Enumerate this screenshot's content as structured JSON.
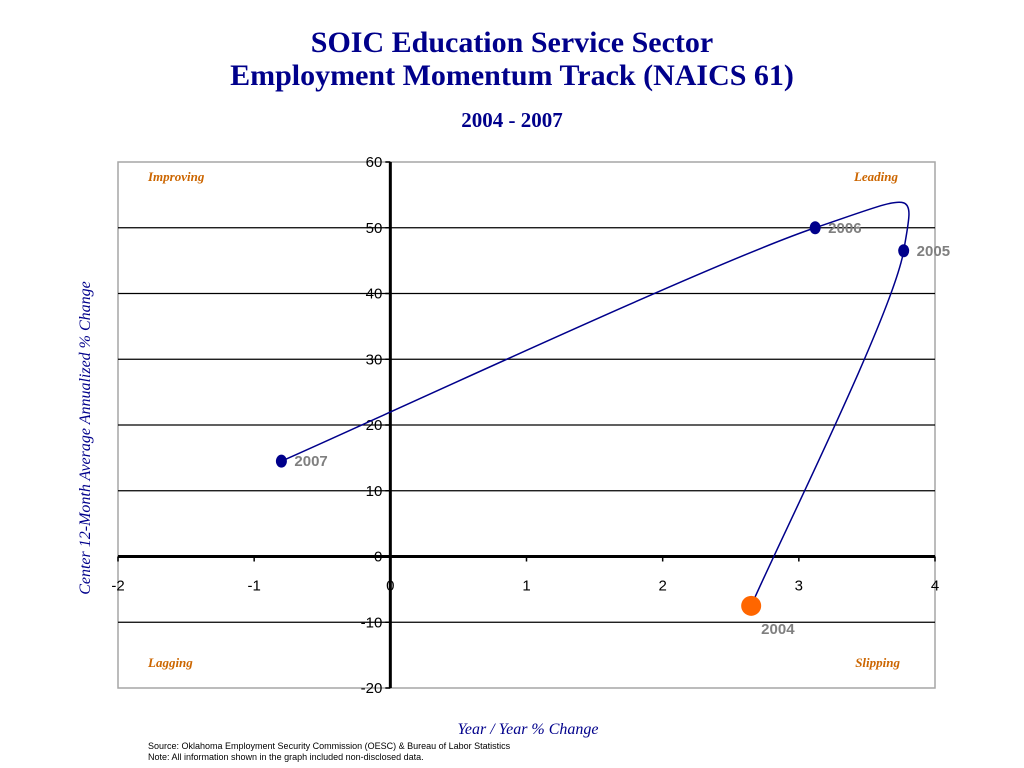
{
  "chart_data": {
    "type": "scatter",
    "title": "SOIC Education Service Sector",
    "title_line2": "Employment Momentum Track (NAICS 61)",
    "subtitle": "2004 - 2007",
    "xlabel": "Year / Year % Change",
    "ylabel": "Center 12-Month Average Annualized % Change",
    "xlim": [
      -2,
      4
    ],
    "ylim": [
      -20,
      60
    ],
    "x_ticks": [
      -2,
      -1,
      0,
      1,
      2,
      3,
      4
    ],
    "y_ticks": [
      60,
      50,
      40,
      30,
      20,
      10,
      0,
      -10,
      -20
    ],
    "grid": "horizontal",
    "line_color": "#00008B",
    "highlight_color": "#FF6600",
    "points": [
      {
        "label": "2004",
        "x": 2.65,
        "y": -7.5,
        "highlight": true
      },
      {
        "label": "2005",
        "x": 3.77,
        "y": 46.5,
        "highlight": false
      },
      {
        "label": "2006",
        "x": 3.12,
        "y": 50,
        "highlight": false
      },
      {
        "label": "2007",
        "x": -0.8,
        "y": 14.5,
        "highlight": false
      }
    ],
    "quadrants": {
      "top_left": "Improving",
      "top_right": "Leading",
      "bottom_left": "Lagging",
      "bottom_right": "Slipping"
    }
  },
  "footer": {
    "source": "Source:  Oklahoma Employment Security Commission (OESC) & Bureau of Labor Statistics",
    "note": "Note: All information shown in the graph included non-disclosed data."
  }
}
